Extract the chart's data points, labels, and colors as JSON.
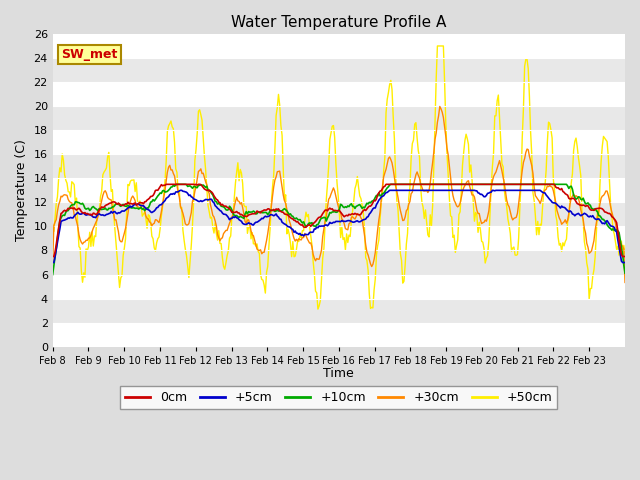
{
  "title": "Water Temperature Profile A",
  "xlabel": "Time",
  "ylabel": "Temperature (C)",
  "ylim": [
    0,
    26
  ],
  "yticks": [
    0,
    2,
    4,
    6,
    8,
    10,
    12,
    14,
    16,
    18,
    20,
    22,
    24,
    26
  ],
  "bg_color": "#dddddd",
  "plot_bg": "#ffffff",
  "legend_label": "SW_met",
  "legend_bg": "#ffff99",
  "legend_border": "#cc0000",
  "series_colors": {
    "0cm": "#cc0000",
    "+5cm": "#0000cc",
    "+10cm": "#00aa00",
    "+30cm": "#ff8800",
    "+50cm": "#ffee00"
  },
  "x_tick_labels": [
    "Feb 8",
    "Feb 9",
    "Feb 10",
    "Feb 11",
    "Feb 12",
    "Feb 13",
    "Feb 14",
    "Feb 15",
    "Feb 16",
    "Feb 17",
    "Feb 18",
    "Feb 19",
    "Feb 20",
    "Feb 21",
    "Feb 22",
    "Feb 23"
  ],
  "n_points": 480,
  "band_colors": [
    "#ffffff",
    "#e8e8e8"
  ]
}
